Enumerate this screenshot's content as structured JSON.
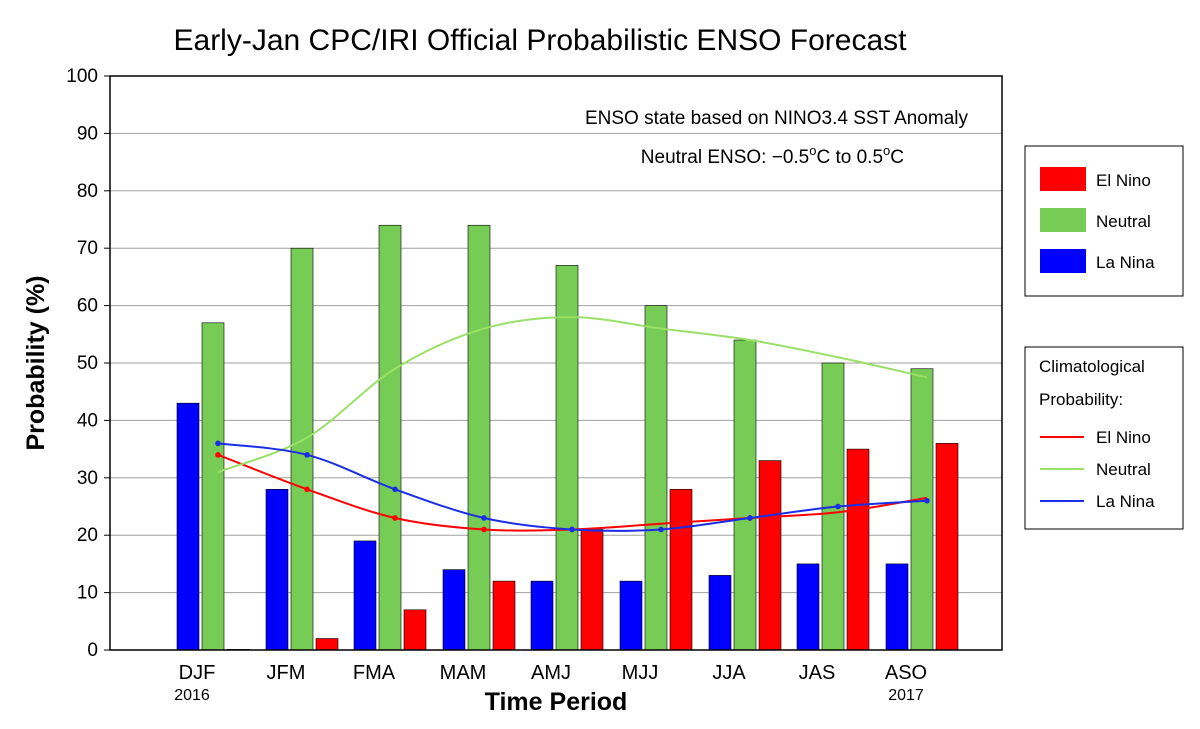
{
  "chart_data": {
    "type": "bar",
    "title": "Early-Jan CPC/IRI Official Probabilistic ENSO Forecast",
    "xlabel": "Time Period",
    "ylabel": "Probability (%)",
    "ylim": [
      0,
      100
    ],
    "yticks": [
      "0",
      "10",
      "20",
      "30",
      "40",
      "50",
      "60",
      "70",
      "80",
      "90",
      "100"
    ],
    "grid": true,
    "categories": [
      "DJF",
      "JFM",
      "FMA",
      "MAM",
      "AMJ",
      "MJJ",
      "JJA",
      "JAS",
      "ASO"
    ],
    "year_labels": {
      "first": "2016",
      "last": "2017"
    },
    "annotations": {
      "line1": "ENSO state based on NINO3.4 SST Anomaly",
      "line2_prefix": "Neutral ENSO: −0.5",
      "line2_mid": "C to 0.5",
      "line2_suffix": "C",
      "degree": "o"
    },
    "series": [
      {
        "name": "La Nina",
        "color": "#0000ff",
        "values": [
          43,
          28,
          19,
          14,
          12,
          12,
          13,
          15,
          15
        ]
      },
      {
        "name": "Neutral",
        "color": "#77cc55",
        "values": [
          57,
          70,
          74,
          74,
          67,
          60,
          54,
          50,
          49
        ]
      },
      {
        "name": "El Nino",
        "color": "#ff0000",
        "values": [
          0,
          2,
          7,
          12,
          21,
          28,
          33,
          35,
          36
        ]
      }
    ],
    "climatology": [
      {
        "name": "El Nino",
        "color": "#ff0000",
        "values": [
          34,
          28,
          23,
          21,
          21,
          22,
          23,
          24,
          26.5
        ],
        "markers": [
          0,
          1,
          2,
          3,
          4,
          6
        ]
      },
      {
        "name": "Neutral",
        "color": "#99e066",
        "values": [
          31,
          37,
          49,
          56,
          58,
          56,
          54,
          51,
          47.5
        ],
        "markers": []
      },
      {
        "name": "La Nina",
        "color": "#1a2ee6",
        "values": [
          36,
          34,
          28,
          23,
          21,
          21,
          23,
          25,
          26
        ],
        "markers": [
          0,
          1,
          2,
          3,
          4,
          5,
          6,
          7,
          8
        ]
      }
    ],
    "legend": {
      "placement": "right",
      "bars": [
        {
          "label": "El Nino",
          "color": "#ff0000"
        },
        {
          "label": "Neutral",
          "color": "#77cc55"
        },
        {
          "label": "La Nina",
          "color": "#0000ff"
        }
      ],
      "lines_title": [
        "Climatological",
        "Probability:"
      ],
      "lines": [
        {
          "label": "El Nino",
          "color": "#ff0000"
        },
        {
          "label": "Neutral",
          "color": "#99e066"
        },
        {
          "label": "La Nina",
          "color": "#1a2ee6"
        }
      ]
    }
  }
}
